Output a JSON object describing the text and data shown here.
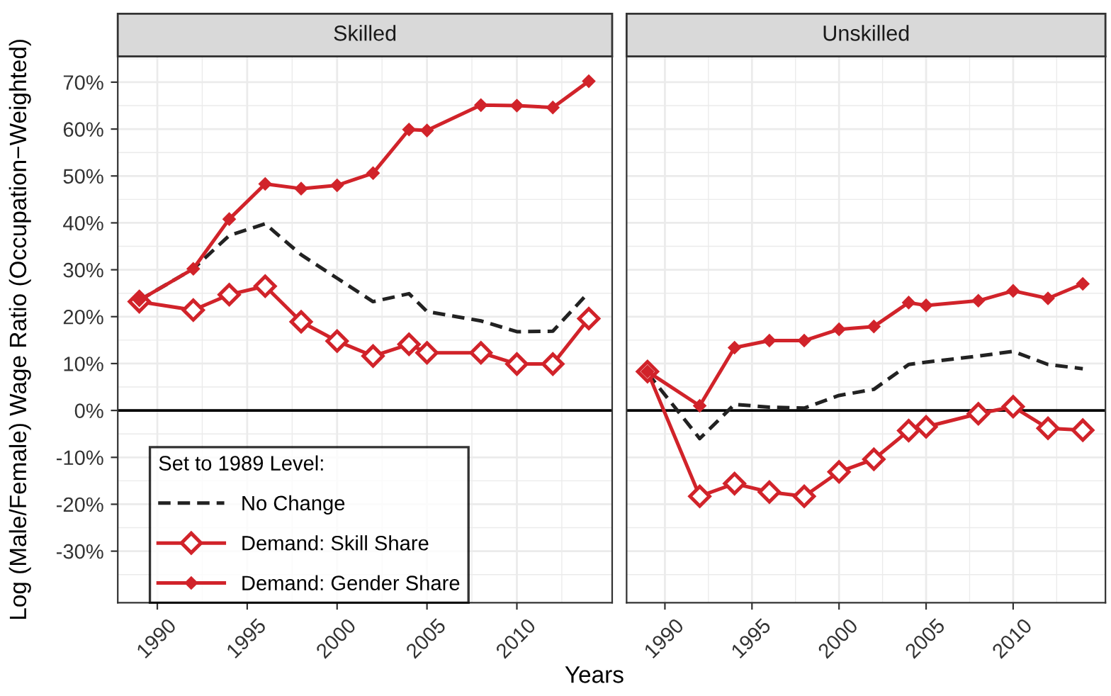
{
  "chart_data": [
    {
      "type": "line",
      "title": "Skilled",
      "ylabel": "Log (Male/Female) Wage Ratio (Occupation−Weighted)",
      "xlabel": "Years",
      "legend_title": "Set to 1989 Level:",
      "legend": "bottom left",
      "grid": true,
      "x": [
        1989,
        1992,
        1994,
        1996,
        1998,
        2000,
        2002,
        2004,
        2005,
        2008,
        2010,
        2012,
        2014
      ],
      "xlim": [
        1987.8,
        2015.3
      ],
      "xticks": [
        1990,
        1995,
        2000,
        2005,
        2010
      ],
      "ylim": [
        -41,
        75.5
      ],
      "yticks": [
        {
          "value": -30,
          "label": "-30%"
        },
        {
          "value": -20,
          "label": "-20%"
        },
        {
          "value": -10,
          "label": "-10%"
        },
        {
          "value": 0,
          "label": "0%"
        },
        {
          "value": 10,
          "label": "10%"
        },
        {
          "value": 20,
          "label": "20%"
        },
        {
          "value": 30,
          "label": "30%"
        },
        {
          "value": 40,
          "label": "40%"
        },
        {
          "value": 50,
          "label": "50%"
        },
        {
          "value": 60,
          "label": "60%"
        },
        {
          "value": 70,
          "label": "70%"
        }
      ],
      "ref_lines": [
        {
          "axis": "y",
          "value": 0,
          "color": "#000000",
          "line_style": "solid"
        }
      ],
      "series": [
        {
          "name": "No Change",
          "color": "#222222",
          "line_style": "dashed",
          "marker": "none",
          "values": [
            23.5,
            30.2,
            37.3,
            39.8,
            33.2,
            28.2,
            23.2,
            24.9,
            21.1,
            19.1,
            16.8,
            16.9,
            25.2
          ]
        },
        {
          "name": "Demand: Skill Share",
          "color": "#d1232a",
          "line_style": "solid",
          "marker": "diamond",
          "values": [
            23.2,
            21.4,
            24.7,
            26.5,
            18.9,
            14.8,
            11.6,
            14.1,
            12.3,
            12.3,
            9.9,
            9.9,
            19.6
          ]
        },
        {
          "name": "Demand: Gender Share",
          "color": "#d1232a",
          "line_style": "solid",
          "marker": "diamond_filled",
          "values": [
            23.5,
            30.2,
            40.8,
            48.3,
            47.3,
            48.0,
            50.6,
            59.9,
            59.7,
            65.1,
            65.0,
            64.6,
            70.2
          ]
        }
      ]
    },
    {
      "type": "line",
      "title": "Unskilled",
      "legend": false,
      "grid": true,
      "tick_labels": "x",
      "x": [
        1989,
        1992,
        1994,
        1996,
        1998,
        2000,
        2002,
        2004,
        2005,
        2008,
        2010,
        2012,
        2014
      ],
      "xlim": [
        1987.8,
        2015.3
      ],
      "xticks": [
        1990,
        1995,
        2000,
        2005,
        2010
      ],
      "ylim": [
        -41,
        75.5
      ],
      "yticks": [
        -30,
        -20,
        -10,
        0,
        10,
        20,
        30,
        40,
        50,
        60,
        70
      ],
      "ref_lines": [
        {
          "axis": "y",
          "value": 0,
          "color": "#000000",
          "line_style": "solid"
        }
      ],
      "series": [
        {
          "color": "#222222",
          "line_style": "dashed",
          "marker": "none",
          "values": [
            8.0,
            -6.0,
            1.3,
            0.7,
            0.5,
            3.2,
            4.5,
            9.8,
            10.3,
            11.6,
            12.6,
            9.8,
            8.9
          ]
        },
        {
          "color": "#d1232a",
          "line_style": "solid",
          "marker": "diamond",
          "values": [
            8.3,
            -18.3,
            -15.6,
            -17.4,
            -18.3,
            -13.1,
            -10.4,
            -4.3,
            -3.5,
            -0.7,
            0.8,
            -3.8,
            -4.2
          ]
        },
        {
          "color": "#d1232a",
          "line_style": "solid",
          "marker": "diamond_filled",
          "values": [
            8.3,
            1.0,
            13.4,
            14.9,
            14.9,
            17.3,
            17.9,
            23.0,
            22.4,
            23.4,
            25.5,
            23.9,
            27.0
          ]
        }
      ]
    }
  ]
}
